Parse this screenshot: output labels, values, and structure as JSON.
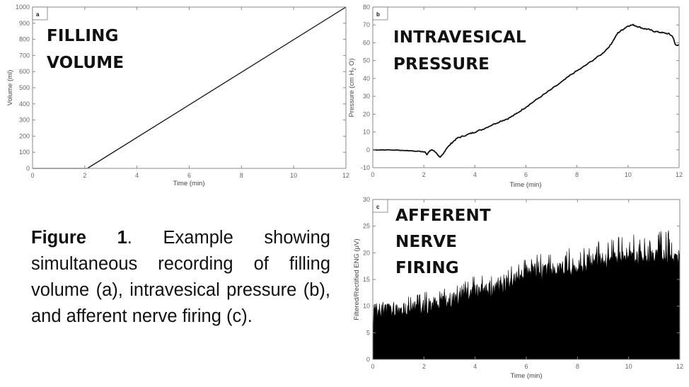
{
  "caption": {
    "figure_label": "Figure 1",
    "text": ". Example showing simultaneous recording of filling volume (a), intravesical pressure (b), and afferent nerve firing (c)."
  },
  "colors": {
    "trace": "#111111",
    "axis": "#888888",
    "tick_text": "#666666",
    "background": "#ffffff"
  },
  "chart_data": [
    {
      "id": "a",
      "type": "line",
      "panel_letter": "a",
      "title": "FILLING VOLUME",
      "title_lines": [
        "FILLING",
        "VOLUME"
      ],
      "xlabel": "Time (min)",
      "ylabel": "Volume (ml)",
      "xlim": [
        0,
        12
      ],
      "ylim": [
        0,
        1000
      ],
      "xticks": [
        0,
        2,
        4,
        6,
        8,
        10,
        12
      ],
      "xtick_labels": [
        "0",
        "2",
        "4",
        "6",
        "8",
        "10",
        "12"
      ],
      "yticks": [
        0,
        100,
        200,
        300,
        400,
        500,
        600,
        700,
        800,
        900,
        1000
      ],
      "ytick_labels": [
        "0",
        "100",
        "200",
        "300",
        "400",
        "500",
        "600",
        "700",
        "800",
        "900",
        "1000"
      ],
      "grid": false,
      "x": [
        0,
        2.1,
        12
      ],
      "y": [
        0,
        0,
        1000
      ]
    },
    {
      "id": "b",
      "type": "line",
      "panel_letter": "b",
      "title": "INTRAVESICAL PRESSURE",
      "title_lines": [
        "INTRAVESICAL",
        "PRESSURE"
      ],
      "xlabel": "Time (min)",
      "ylabel": "Pressure (cm H2O)",
      "ylabel_parts": [
        "Pressure (cm H",
        "2",
        " O)"
      ],
      "xlim": [
        0,
        12
      ],
      "ylim": [
        -10,
        80
      ],
      "xticks": [
        0,
        2,
        4,
        6,
        8,
        10,
        12
      ],
      "xtick_labels": [
        "0",
        "2",
        "4",
        "6",
        "8",
        "10",
        "12"
      ],
      "yticks": [
        -10,
        0,
        10,
        20,
        30,
        40,
        50,
        60,
        70,
        80
      ],
      "ytick_labels": [
        "-10",
        "0",
        "10",
        "20",
        "30",
        "40",
        "50",
        "60",
        "70",
        "80"
      ],
      "grid": false,
      "x": [
        0,
        0.5,
        1.0,
        1.5,
        1.9,
        2.05,
        2.12,
        2.2,
        2.3,
        2.4,
        2.5,
        2.6,
        2.65,
        2.75,
        2.9,
        3.1,
        3.3,
        3.5,
        3.8,
        4.0,
        4.3,
        4.6,
        5.0,
        5.3,
        5.6,
        5.9,
        6.2,
        6.6,
        7.0,
        7.4,
        7.8,
        8.2,
        8.6,
        9.0,
        9.3,
        9.45,
        9.6,
        9.8,
        10.0,
        10.2,
        10.4,
        10.6,
        10.8,
        11.0,
        11.2,
        11.4,
        11.6,
        11.75,
        11.85,
        12.0
      ],
      "y": [
        0,
        0,
        -0.2,
        -0.5,
        -1,
        -1.2,
        -2.8,
        -1.0,
        0,
        -0.5,
        -2,
        -3.8,
        -4,
        -2.5,
        1,
        4,
        6.5,
        7.5,
        9,
        10,
        11.5,
        13.5,
        16,
        17.5,
        20,
        23,
        26,
        30,
        34,
        38,
        42.5,
        46,
        50,
        54,
        58.5,
        62,
        65.5,
        67.5,
        69.5,
        70,
        69,
        68,
        67.5,
        66.5,
        66,
        65.5,
        65,
        63.5,
        59,
        58.5
      ]
    },
    {
      "id": "c",
      "type": "area",
      "panel_letter": "c",
      "title": "AFFERENT NERVE FIRING",
      "title_lines": [
        "AFFERENT",
        "NERVE",
        "FIRING"
      ],
      "xlabel": "Time (min)",
      "ylabel": "Filtered/Rectified ENG (μV)",
      "xlim": [
        0,
        12
      ],
      "ylim": [
        0,
        30
      ],
      "xticks": [
        0,
        2,
        4,
        6,
        8,
        10,
        12
      ],
      "xtick_labels": [
        "0",
        "2",
        "4",
        "6",
        "8",
        "10",
        "12"
      ],
      "yticks": [
        0,
        5,
        10,
        15,
        20,
        25,
        30
      ],
      "ytick_labels": [
        "0",
        "5",
        "10",
        "15",
        "20",
        "25",
        "30"
      ],
      "grid": false,
      "envelope_x": [
        0,
        1,
        2,
        3,
        4,
        5,
        5.5,
        6,
        7,
        8,
        9,
        10,
        11,
        12
      ],
      "envelope_baseline": [
        9,
        9,
        10,
        11,
        12.5,
        13.5,
        14.5,
        16,
        16.5,
        17.5,
        18.5,
        19,
        19.5,
        19
      ],
      "envelope_peak": [
        10.5,
        11.5,
        12.8,
        13.5,
        15.8,
        15.8,
        18,
        19.5,
        20,
        21.5,
        22.5,
        24,
        24,
        24.5
      ]
    }
  ]
}
